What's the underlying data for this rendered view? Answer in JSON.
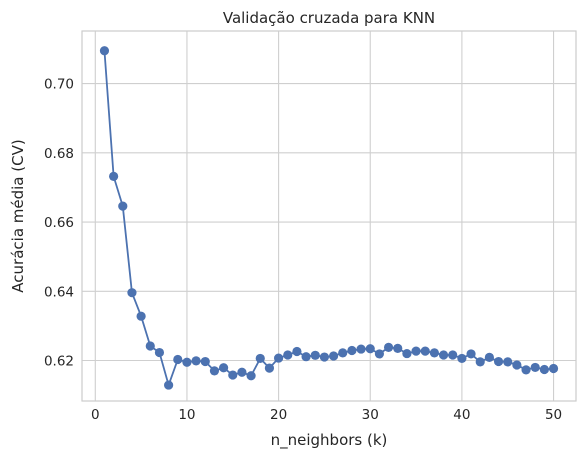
{
  "chart_data": {
    "type": "line",
    "title": "Validação cruzada para KNN",
    "xlabel": "n_neighbors (k)",
    "ylabel": "Acurácia média (CV)",
    "xlim": [
      -1.45,
      52.45
    ],
    "ylim": [
      0.6083,
      0.7152
    ],
    "x_ticks": [
      0,
      10,
      20,
      30,
      40,
      50
    ],
    "x_tick_labels": [
      "0",
      "10",
      "20",
      "30",
      "40",
      "50"
    ],
    "y_ticks": [
      0.62,
      0.64,
      0.66,
      0.68,
      0.7
    ],
    "y_tick_labels": [
      "0.62",
      "0.64",
      "0.66",
      "0.68",
      "0.70"
    ],
    "grid": true,
    "line_color": "#4c72b0",
    "x": [
      1,
      2,
      3,
      4,
      5,
      6,
      7,
      8,
      9,
      10,
      11,
      12,
      13,
      14,
      15,
      16,
      17,
      18,
      19,
      20,
      21,
      22,
      23,
      24,
      25,
      26,
      27,
      28,
      29,
      30,
      31,
      32,
      33,
      34,
      35,
      36,
      37,
      38,
      39,
      40,
      41,
      42,
      43,
      44,
      45,
      46,
      47,
      48,
      49,
      50
    ],
    "y": [
      0.7095,
      0.6732,
      0.6646,
      0.6396,
      0.6328,
      0.6242,
      0.6223,
      0.6129,
      0.6203,
      0.6195,
      0.6199,
      0.6197,
      0.617,
      0.6179,
      0.6158,
      0.6166,
      0.6156,
      0.6206,
      0.6178,
      0.6207,
      0.6216,
      0.6226,
      0.6211,
      0.6215,
      0.621,
      0.6213,
      0.6222,
      0.6229,
      0.6233,
      0.6234,
      0.6219,
      0.6238,
      0.6235,
      0.622,
      0.6227,
      0.6227,
      0.6222,
      0.6216,
      0.6216,
      0.6206,
      0.6219,
      0.6196,
      0.6209,
      0.6197,
      0.6196,
      0.6187,
      0.6173,
      0.618,
      0.6174,
      0.6177
    ]
  }
}
